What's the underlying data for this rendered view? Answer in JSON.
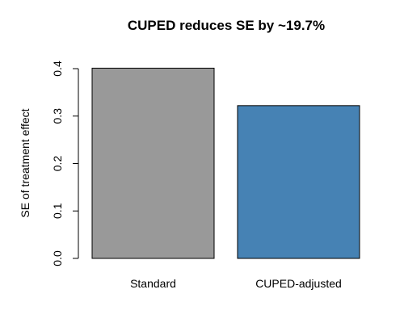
{
  "chart_data": {
    "type": "bar",
    "title": "CUPED reduces SE by ~19.7%",
    "xlabel": "",
    "ylabel": "SE of treatment effect",
    "categories": [
      "Standard",
      "CUPED-adjusted"
    ],
    "values": [
      0.401,
      0.322
    ],
    "colors": [
      "#999999",
      "#4682b4"
    ],
    "ylim": [
      0,
      0.4
    ],
    "yticks": [
      0.0,
      0.1,
      0.2,
      0.3,
      0.4
    ],
    "ytick_labels": [
      "0.0",
      "0.1",
      "0.2",
      "0.3",
      "0.4"
    ],
    "grid": false,
    "legend": "none"
  }
}
